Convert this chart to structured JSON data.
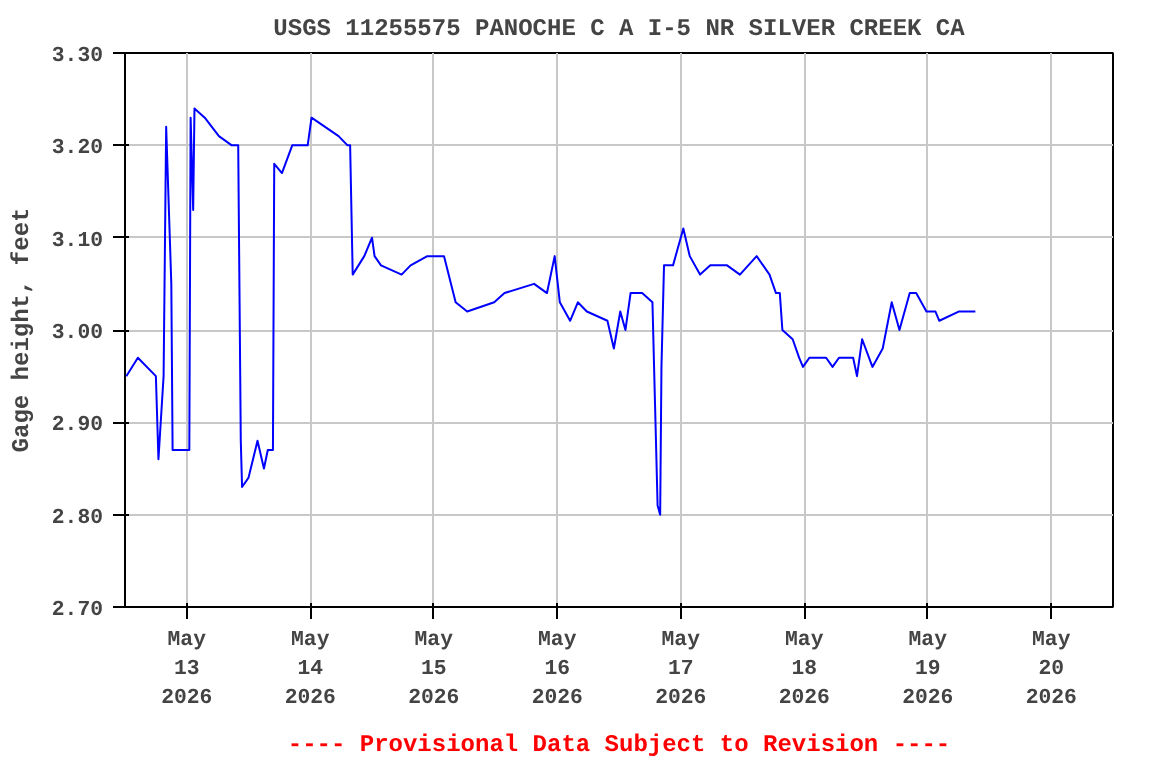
{
  "chart_data": {
    "type": "line",
    "title": "USGS 11255575 PANOCHE C A I-5 NR SILVER CREEK CA",
    "ylabel": "Gage height, feet",
    "annotations": [
      "---- Provisional Data Subject to Revision ----"
    ],
    "xlim": [
      "2026-05-12T12:00",
      "2026-05-20T12:00"
    ],
    "xticks": [
      {
        "value": "2026-05-13",
        "label": "May\n13\n2026"
      },
      {
        "value": "2026-05-14",
        "label": "May\n14\n2026"
      },
      {
        "value": "2026-05-15",
        "label": "May\n15\n2026"
      },
      {
        "value": "2026-05-16",
        "label": "May\n16\n2026"
      },
      {
        "value": "2026-05-17",
        "label": "May\n17\n2026"
      },
      {
        "value": "2026-05-18",
        "label": "May\n18\n2026"
      },
      {
        "value": "2026-05-19",
        "label": "May\n19\n2026"
      },
      {
        "value": "2026-05-20",
        "label": "May\n20\n2026"
      }
    ],
    "ylim": [
      2.7,
      3.3
    ],
    "yticks": [
      {
        "value": 2.7,
        "label": "2.70"
      },
      {
        "value": 2.8,
        "label": "2.80"
      },
      {
        "value": 2.9,
        "label": "2.90"
      },
      {
        "value": 3.0,
        "label": "3.00"
      },
      {
        "value": 3.1,
        "label": "3.10"
      },
      {
        "value": 3.2,
        "label": "3.20"
      },
      {
        "value": 3.3,
        "label": "3.30"
      }
    ],
    "grid": true,
    "series": [
      {
        "color": "#0000ff",
        "x": [
          "2026-05-12T12:15",
          "2026-05-12T14:30",
          "2026-05-12T18:00",
          "2026-05-12T18:30",
          "2026-05-12T19:30",
          "2026-05-12T20:00",
          "2026-05-12T21:00",
          "2026-05-12T21:15",
          "2026-05-13T00:30",
          "2026-05-13T00:45",
          "2026-05-13T01:15",
          "2026-05-13T01:30",
          "2026-05-13T03:30",
          "2026-05-13T06:15",
          "2026-05-13T08:45",
          "2026-05-13T10:00",
          "2026-05-13T10:30",
          "2026-05-13T10:45",
          "2026-05-13T12:00",
          "2026-05-13T13:45",
          "2026-05-13T15:00",
          "2026-05-13T15:45",
          "2026-05-13T16:45",
          "2026-05-13T17:00",
          "2026-05-13T18:30",
          "2026-05-13T20:30",
          "2026-05-13T23:30",
          "2026-05-14T00:15",
          "2026-05-14T05:30",
          "2026-05-14T07:15",
          "2026-05-14T07:45",
          "2026-05-14T08:00",
          "2026-05-14T08:15",
          "2026-05-14T10:30",
          "2026-05-14T12:00",
          "2026-05-14T12:30",
          "2026-05-14T13:45",
          "2026-05-14T17:45",
          "2026-05-14T19:30",
          "2026-05-14T22:45",
          "2026-05-15T02:00",
          "2026-05-15T04:15",
          "2026-05-15T06:30",
          "2026-05-15T11:45",
          "2026-05-15T13:45",
          "2026-05-15T19:30",
          "2026-05-15T22:00",
          "2026-05-15T23:30",
          "2026-05-16T00:30",
          "2026-05-16T02:30",
          "2026-05-16T04:00",
          "2026-05-16T05:45",
          "2026-05-16T09:45",
          "2026-05-16T11:00",
          "2026-05-16T12:15",
          "2026-05-16T13:15",
          "2026-05-16T14:15",
          "2026-05-16T16:30",
          "2026-05-16T18:30",
          "2026-05-16T19:00",
          "2026-05-16T19:30",
          "2026-05-16T20:00",
          "2026-05-16T20:15",
          "2026-05-16T20:45",
          "2026-05-16T22:30",
          "2026-05-17T00:30",
          "2026-05-17T01:45",
          "2026-05-17T03:45",
          "2026-05-17T05:45",
          "2026-05-17T09:00",
          "2026-05-17T11:30",
          "2026-05-17T14:45",
          "2026-05-17T17:15",
          "2026-05-17T18:30",
          "2026-05-17T19:15",
          "2026-05-17T19:45",
          "2026-05-17T21:45",
          "2026-05-17T23:00",
          "2026-05-17T23:45",
          "2026-05-18T01:00",
          "2026-05-18T04:15",
          "2026-05-18T05:30",
          "2026-05-18T06:45",
          "2026-05-18T09:30",
          "2026-05-18T10:15",
          "2026-05-18T11:15",
          "2026-05-18T13:15",
          "2026-05-18T15:15",
          "2026-05-18T17:00",
          "2026-05-18T18:30",
          "2026-05-18T20:30",
          "2026-05-18T21:45",
          "2026-05-18T23:45",
          "2026-05-19T01:30",
          "2026-05-19T02:15",
          "2026-05-19T06:00",
          "2026-05-19T09:15"
        ],
        "values": [
          2.95,
          2.97,
          2.95,
          2.86,
          2.95,
          3.22,
          3.05,
          2.87,
          2.87,
          3.23,
          3.13,
          3.24,
          3.23,
          3.21,
          3.2,
          3.2,
          2.88,
          2.83,
          2.84,
          2.88,
          2.85,
          2.87,
          2.87,
          3.18,
          3.17,
          3.2,
          3.2,
          3.23,
          3.21,
          3.2,
          3.2,
          3.13,
          3.06,
          3.08,
          3.1,
          3.08,
          3.07,
          3.06,
          3.07,
          3.08,
          3.08,
          3.03,
          3.02,
          3.03,
          3.04,
          3.05,
          3.04,
          3.08,
          3.03,
          3.01,
          3.03,
          3.02,
          3.01,
          2.98,
          3.02,
          3.0,
          3.04,
          3.04,
          3.03,
          2.92,
          2.81,
          2.8,
          2.96,
          3.07,
          3.07,
          3.11,
          3.08,
          3.06,
          3.07,
          3.07,
          3.06,
          3.08,
          3.06,
          3.04,
          3.04,
          3.0,
          2.99,
          2.97,
          2.96,
          2.97,
          2.97,
          2.96,
          2.97,
          2.97,
          2.95,
          2.99,
          2.96,
          2.98,
          3.03,
          3.0,
          3.04,
          3.04,
          3.02,
          3.02,
          3.01,
          3.02,
          3.02
        ]
      }
    ]
  }
}
